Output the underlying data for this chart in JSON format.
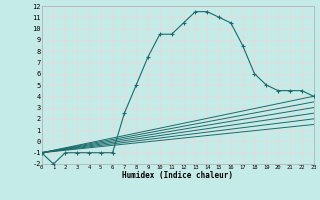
{
  "xlabel": "Humidex (Indice chaleur)",
  "bg_color": "#c5ebe8",
  "grid_color": "#daf0ee",
  "line_color": "#1a6b6b",
  "xlim": [
    0,
    23
  ],
  "ylim": [
    -2,
    12
  ],
  "xticks": [
    0,
    1,
    2,
    3,
    4,
    5,
    6,
    7,
    8,
    9,
    10,
    11,
    12,
    13,
    14,
    15,
    16,
    17,
    18,
    19,
    20,
    21,
    22,
    23
  ],
  "yticks": [
    -2,
    -1,
    0,
    1,
    2,
    3,
    4,
    5,
    6,
    7,
    8,
    9,
    10,
    11,
    12
  ],
  "main_curve_x": [
    0,
    1,
    2,
    3,
    4,
    5,
    6,
    7,
    8,
    9,
    10,
    11,
    12,
    13,
    14,
    15,
    16,
    17,
    18,
    19,
    20,
    21,
    22,
    23
  ],
  "main_curve_y": [
    -1,
    -2,
    -1,
    -1,
    -1,
    -1,
    -1,
    2.5,
    5.0,
    7.5,
    9.5,
    9.5,
    10.5,
    11.5,
    11.5,
    11.0,
    10.5,
    8.5,
    6.0,
    5.0,
    4.5,
    4.5,
    4.5,
    4.0
  ],
  "fan_lines": [
    [
      0,
      -1,
      23,
      4.0
    ],
    [
      0,
      -1,
      23,
      3.5
    ],
    [
      0,
      -1,
      23,
      3.0
    ],
    [
      0,
      -1,
      23,
      2.5
    ],
    [
      0,
      -1,
      23,
      2.0
    ],
    [
      0,
      -1,
      23,
      1.5
    ]
  ]
}
